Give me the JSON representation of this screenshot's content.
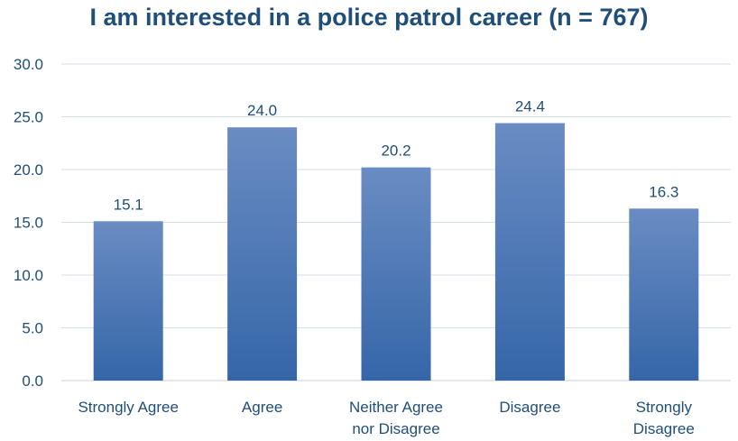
{
  "chart_data": {
    "type": "bar",
    "title": "I am interested in a police patrol career (n = 767)",
    "categories": [
      "Strongly Agree",
      "Agree",
      "Neither Agree nor Disagree",
      "Disagree",
      "Strongly Disagree"
    ],
    "category_lines": [
      [
        "Strongly Agree"
      ],
      [
        "Agree"
      ],
      [
        "Neither Agree",
        "nor Disagree"
      ],
      [
        "Disagree"
      ],
      [
        "Strongly",
        "Disagree"
      ]
    ],
    "values": [
      15.1,
      24.0,
      20.2,
      24.4,
      16.3
    ],
    "data_labels": [
      "15.1",
      "24.0",
      "20.2",
      "24.4",
      "16.3"
    ],
    "y_ticks": [
      "0.0",
      "5.0",
      "10.0",
      "15.0",
      "20.0",
      "25.0",
      "30.0"
    ],
    "ylim": [
      0,
      30
    ],
    "xlabel": "",
    "ylabel": "",
    "grid": true,
    "legend": "none",
    "colors": {
      "bar_top": "#6a8cc3",
      "bar_bottom": "#3566a8",
      "text": "#1f4e79"
    }
  }
}
